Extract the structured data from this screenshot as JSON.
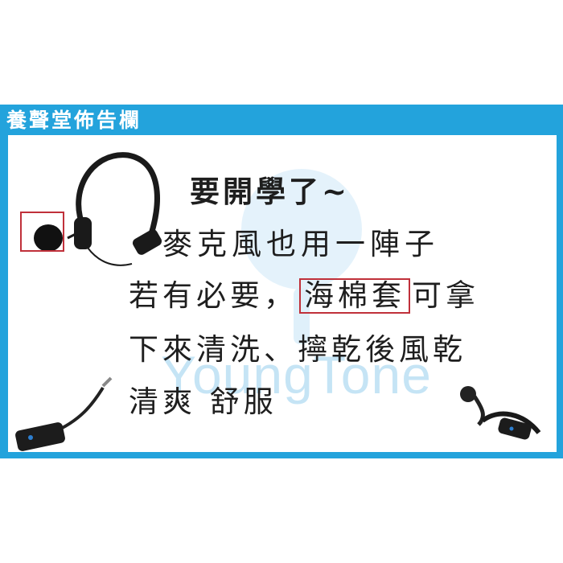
{
  "board": {
    "title": "養聲堂佈告欄",
    "watermark": "YoungTone",
    "colors": {
      "frame": "#23a3dc",
      "highlight": "#c0303a",
      "text": "#1e1e1e"
    }
  },
  "notice": {
    "line1": "要開學了~",
    "line2": "麥克風也用一陣子",
    "line3_before": "若有必要，",
    "line3_boxed": "海棉套",
    "line3_after": "可拿",
    "line4": "下來清洗、擰乾後風乾",
    "line5": "清爽 舒服"
  },
  "images": {
    "headset": "headset-microphone-icon",
    "cable": "mic-cable-icon",
    "small_headset": "small-headset-icon"
  }
}
